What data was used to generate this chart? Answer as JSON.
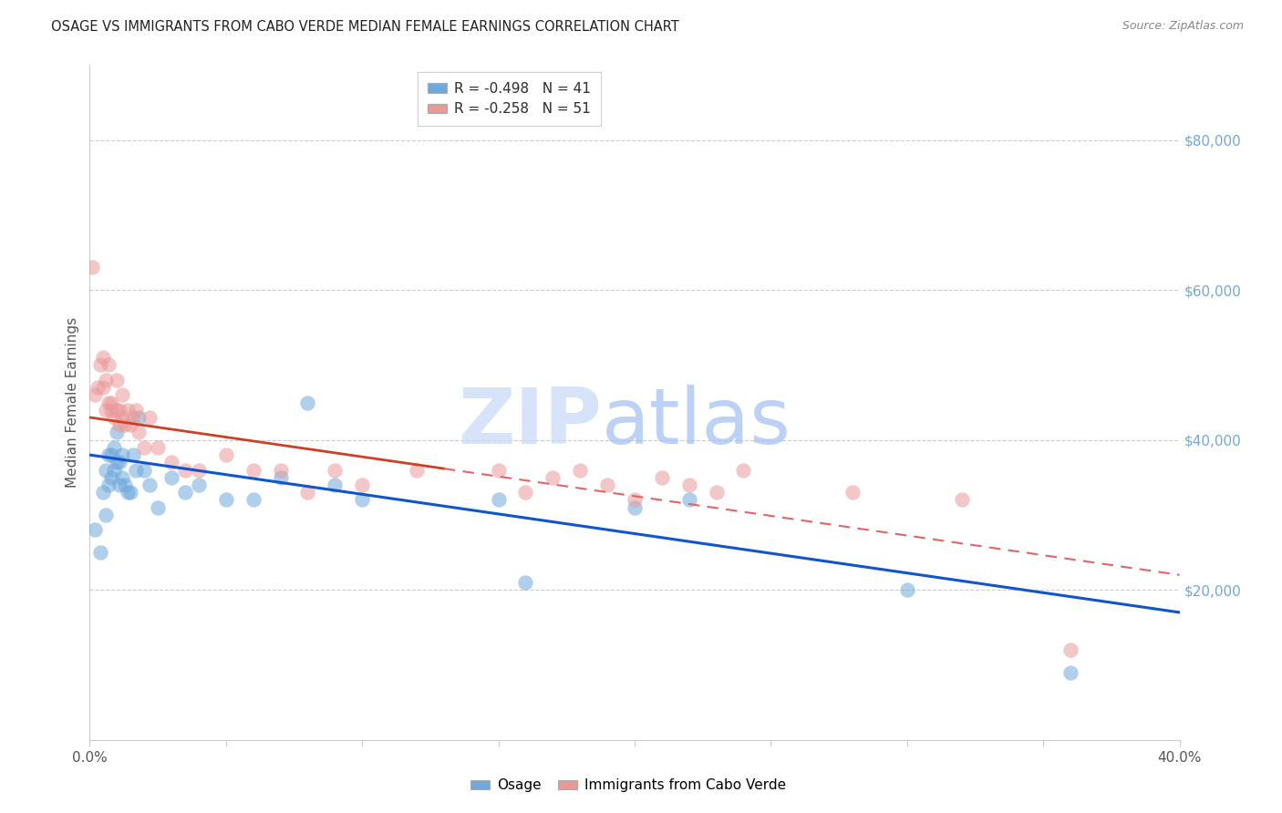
{
  "title": "OSAGE VS IMMIGRANTS FROM CABO VERDE MEDIAN FEMALE EARNINGS CORRELATION CHART",
  "source": "Source: ZipAtlas.com",
  "ylabel": "Median Female Earnings",
  "xlim_min": 0.0,
  "xlim_max": 0.4,
  "ylim_min": 0,
  "ylim_max": 90000,
  "blue_R": "-0.498",
  "blue_N": "41",
  "pink_R": "-0.258",
  "pink_N": "51",
  "blue_color": "#6fa8dc",
  "pink_color": "#ea9999",
  "trend_blue_color": "#1155cc",
  "trend_pink_solid_color": "#cc4125",
  "trend_pink_dash_color": "#e06666",
  "watermark_zip_color": "#c9daf8",
  "watermark_atlas_color": "#a4c2f4",
  "grid_color": "#cccccc",
  "title_color": "#222222",
  "source_color": "#888888",
  "ylabel_color": "#555555",
  "tick_y_color": "#6fa8dc",
  "tick_x_color": "#555555",
  "osage_x": [
    0.002,
    0.004,
    0.005,
    0.006,
    0.006,
    0.007,
    0.007,
    0.008,
    0.008,
    0.009,
    0.009,
    0.01,
    0.01,
    0.011,
    0.011,
    0.012,
    0.012,
    0.013,
    0.014,
    0.015,
    0.016,
    0.017,
    0.018,
    0.02,
    0.022,
    0.025,
    0.03,
    0.035,
    0.04,
    0.05,
    0.06,
    0.07,
    0.08,
    0.09,
    0.1,
    0.15,
    0.16,
    0.2,
    0.22,
    0.3,
    0.36
  ],
  "osage_y": [
    28000,
    25000,
    33000,
    36000,
    30000,
    38000,
    34000,
    38000,
    35000,
    39000,
    36000,
    41000,
    37000,
    37000,
    34000,
    35000,
    38000,
    34000,
    33000,
    33000,
    38000,
    36000,
    43000,
    36000,
    34000,
    31000,
    35000,
    33000,
    34000,
    32000,
    32000,
    35000,
    45000,
    34000,
    32000,
    32000,
    21000,
    31000,
    32000,
    20000,
    9000
  ],
  "cabo_x": [
    0.001,
    0.002,
    0.003,
    0.004,
    0.005,
    0.005,
    0.006,
    0.006,
    0.007,
    0.007,
    0.008,
    0.008,
    0.009,
    0.01,
    0.01,
    0.011,
    0.011,
    0.012,
    0.012,
    0.013,
    0.014,
    0.015,
    0.016,
    0.017,
    0.018,
    0.02,
    0.022,
    0.025,
    0.03,
    0.035,
    0.04,
    0.05,
    0.06,
    0.07,
    0.08,
    0.09,
    0.1,
    0.12,
    0.15,
    0.16,
    0.17,
    0.18,
    0.19,
    0.2,
    0.21,
    0.22,
    0.23,
    0.24,
    0.28,
    0.32,
    0.36
  ],
  "cabo_y": [
    63000,
    46000,
    47000,
    50000,
    51000,
    47000,
    48000,
    44000,
    45000,
    50000,
    45000,
    44000,
    43000,
    44000,
    48000,
    44000,
    42000,
    46000,
    43000,
    42000,
    44000,
    42000,
    43000,
    44000,
    41000,
    39000,
    43000,
    39000,
    37000,
    36000,
    36000,
    38000,
    36000,
    36000,
    33000,
    36000,
    34000,
    36000,
    36000,
    33000,
    35000,
    36000,
    34000,
    32000,
    35000,
    34000,
    33000,
    36000,
    33000,
    32000,
    12000
  ]
}
